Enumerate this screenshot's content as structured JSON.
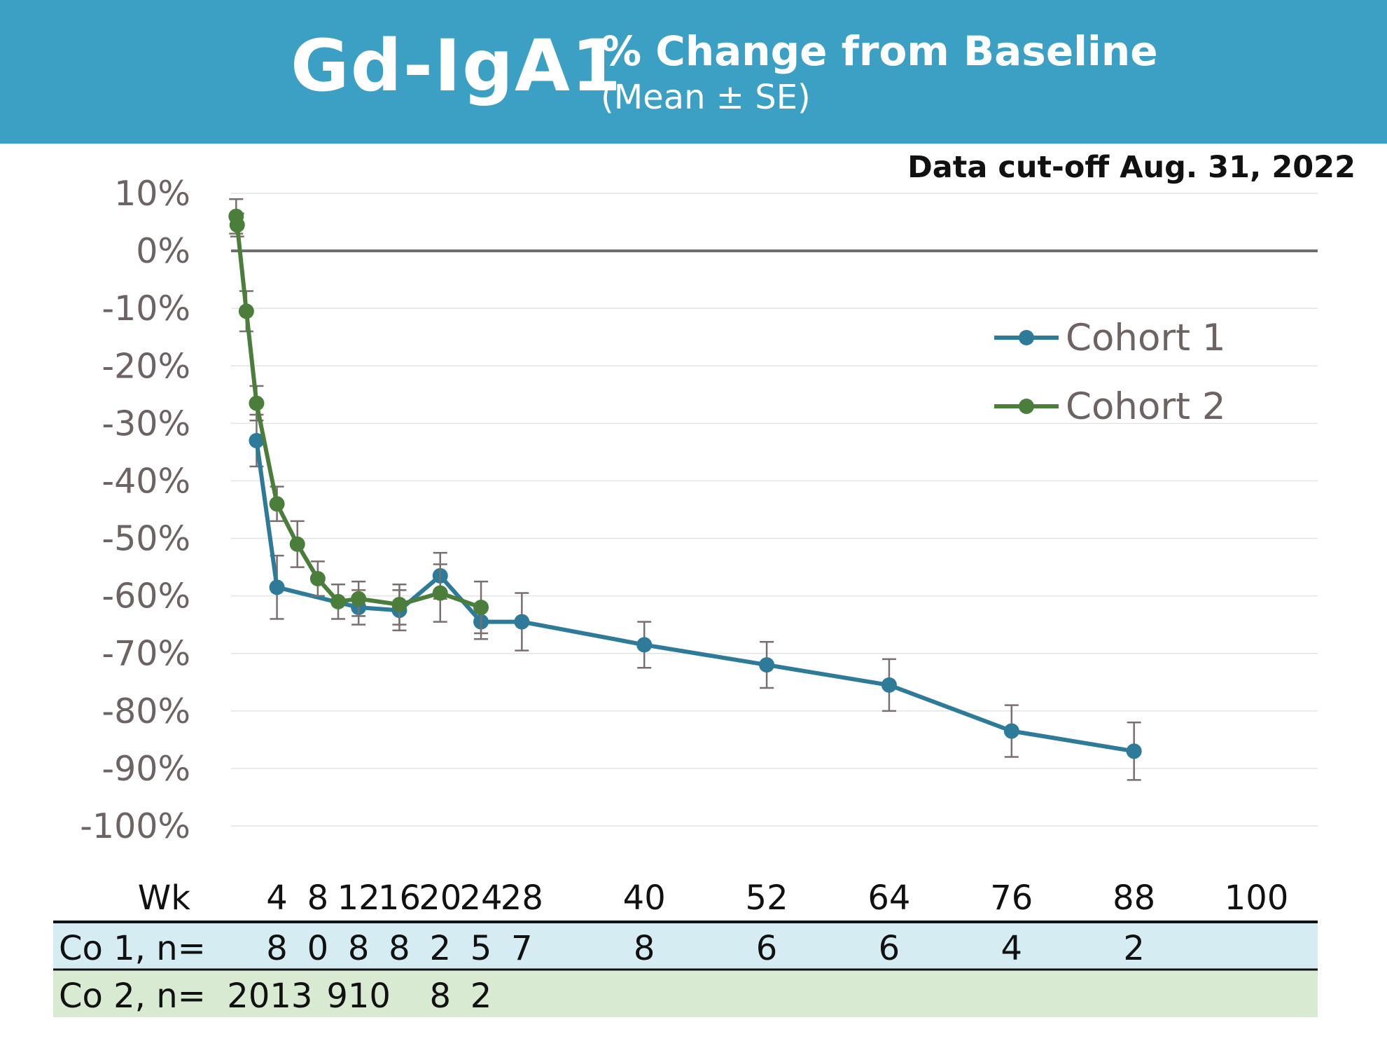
{
  "header": {
    "title": "Gd-IgA1",
    "subtitle": "% Change from Baseline",
    "subtitle2": "(Mean ± SE)"
  },
  "cutoff": "Data cut-off Aug. 31, 2022",
  "chart_data": {
    "type": "line",
    "title": "Gd-IgA1 % Change from Baseline (Mean ± SE)",
    "xlabel": "Wk",
    "ylabel": "",
    "ylim": [
      -100,
      10
    ],
    "xlim": [
      -0.5,
      106
    ],
    "yticks": [
      10,
      0,
      -10,
      -20,
      -30,
      -40,
      -50,
      -60,
      -70,
      -80,
      -90,
      -100
    ],
    "ytick_labels": [
      "10%",
      "0%",
      "-10%",
      "-20%",
      "-30%",
      "-40%",
      "-50%",
      "-60%",
      "-70%",
      "-80%",
      "-90%",
      "-100%"
    ],
    "xticks": [
      4,
      8,
      12,
      16,
      20,
      24,
      28,
      40,
      52,
      64,
      76,
      88,
      100
    ],
    "xtick_labels": [
      "4",
      "8",
      "12",
      "16",
      "20",
      "24",
      "28",
      "40",
      "52",
      "64",
      "76",
      "88",
      "100"
    ],
    "grid": true,
    "legend_position": "right",
    "series": [
      {
        "name": "Cohort 1",
        "color": "#2e7a99",
        "points": [
          {
            "x": 2,
            "y": -33,
            "se": 4.5
          },
          {
            "x": 4,
            "y": -58.5,
            "se": 5.5
          },
          {
            "x": 12,
            "y": -62,
            "se": 3
          },
          {
            "x": 16,
            "y": -62.5,
            "se": 3.5
          },
          {
            "x": 20,
            "y": -56.5,
            "se": 4
          },
          {
            "x": 24,
            "y": -64.5,
            "se": 3
          },
          {
            "x": 28,
            "y": -64.5,
            "se": 5
          },
          {
            "x": 40,
            "y": -68.5,
            "se": 4
          },
          {
            "x": 52,
            "y": -72,
            "se": 4
          },
          {
            "x": 64,
            "y": -75.5,
            "se": 4.5
          },
          {
            "x": 76,
            "y": -83.5,
            "se": 4.5
          },
          {
            "x": 88,
            "y": -87,
            "se": 5
          }
        ]
      },
      {
        "name": "Cohort 2",
        "color": "#4a7e3a",
        "points": [
          {
            "x": 0,
            "y": 6,
            "se": 3
          },
          {
            "x": 0.1,
            "y": 4.5,
            "se": 2
          },
          {
            "x": 1,
            "y": -10.5,
            "se": 3.5
          },
          {
            "x": 2,
            "y": -26.5,
            "se": 3
          },
          {
            "x": 4,
            "y": -44,
            "se": 3
          },
          {
            "x": 6,
            "y": -51,
            "se": 4
          },
          {
            "x": 8,
            "y": -57,
            "se": 3
          },
          {
            "x": 10,
            "y": -61,
            "se": 3
          },
          {
            "x": 12,
            "y": -60.5,
            "se": 3
          },
          {
            "x": 16,
            "y": -61.5,
            "se": 3.5
          },
          {
            "x": 20,
            "y": -59.5,
            "se": 5
          },
          {
            "x": 24,
            "y": -62,
            "se": 4.5
          }
        ]
      }
    ],
    "n_table": {
      "header": "Wk",
      "rows": [
        {
          "label": "Co 1, n=",
          "cells": [
            {
              "x": 4,
              "text": "8"
            },
            {
              "x": 8,
              "text": "0"
            },
            {
              "x": 12,
              "text": "8"
            },
            {
              "x": 16,
              "text": "8"
            },
            {
              "x": 20,
              "text": "2"
            },
            {
              "x": 24,
              "text": "5"
            },
            {
              "x": 28,
              "text": "7"
            },
            {
              "x": 40,
              "text": "8"
            },
            {
              "x": 52,
              "text": "6"
            },
            {
              "x": 64,
              "text": "6"
            },
            {
              "x": 76,
              "text": "4"
            },
            {
              "x": 88,
              "text": "2"
            }
          ]
        },
        {
          "label": "Co 2, n=",
          "cells": [
            {
              "x": 3.3,
              "text": "2013"
            },
            {
              "x": 12,
              "text": "910"
            },
            {
              "x": 20,
              "text": "8"
            },
            {
              "x": 24,
              "text": "2"
            }
          ]
        }
      ]
    }
  },
  "colors": {
    "banner": "#3ba0c3",
    "row1_bg": "#d6ecf3",
    "row2_bg": "#d9ead3",
    "grid": "#e3e3e3",
    "zero_line": "#6d6d6d"
  }
}
